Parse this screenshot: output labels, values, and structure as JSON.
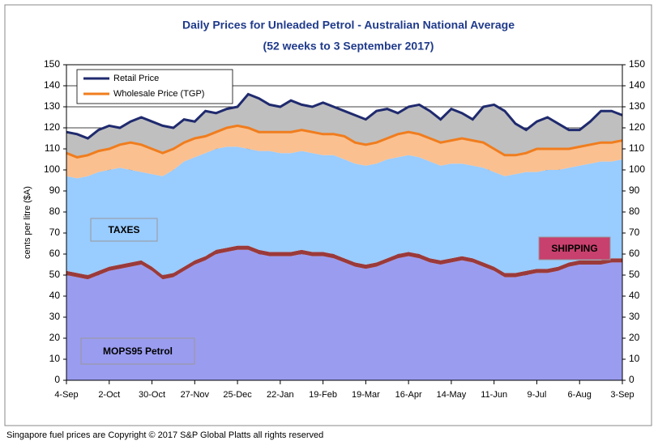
{
  "chart_data": {
    "type": "area",
    "title": "Daily Prices for Unleaded Petrol - Australian National Average",
    "subtitle": "(52 weeks to 3 September 2017)",
    "y_label": "cents per litre ($A)",
    "footer": "Singapore fuel prices are Copyright © 2017 S&P Global Platts all rights reserved",
    "categories": [
      "4-Sep",
      null,
      null,
      null,
      "2-Oct",
      null,
      null,
      null,
      "30-Oct",
      null,
      null,
      null,
      "27-Nov",
      null,
      null,
      null,
      "25-Dec",
      null,
      null,
      null,
      "22-Jan",
      null,
      null,
      null,
      "19-Feb",
      null,
      null,
      null,
      "19-Mar",
      null,
      null,
      null,
      "16-Apr",
      null,
      null,
      null,
      "14-May",
      null,
      null,
      null,
      "11-Jun",
      null,
      null,
      null,
      "9-Jul",
      null,
      null,
      null,
      "6-Aug",
      null,
      null,
      null,
      "3-Sep"
    ],
    "ylim": [
      0,
      150
    ],
    "yticks": [
      0,
      10,
      20,
      30,
      40,
      50,
      60,
      70,
      80,
      90,
      100,
      110,
      120,
      130,
      140,
      150
    ],
    "grid": true,
    "series": [
      {
        "name": "MOPS95 Petrol",
        "type": "area",
        "color": "#9a9cf0",
        "values": [
          50,
          49,
          48,
          50,
          52,
          53,
          54,
          55,
          52,
          48,
          49,
          52,
          55,
          57,
          60,
          61,
          62,
          62,
          60,
          59,
          59,
          59,
          60,
          59,
          59,
          58,
          56,
          54,
          53,
          54,
          56,
          58,
          59,
          58,
          56,
          55,
          56,
          57,
          56,
          54,
          52,
          49,
          49,
          50,
          51,
          51,
          52,
          54,
          55,
          55,
          55,
          56,
          56
        ]
      },
      {
        "name": "SHIPPING",
        "type": "area",
        "color": "#9b3a3a",
        "values": [
          2,
          2,
          2,
          2,
          2,
          2,
          2,
          2,
          2,
          2,
          2,
          2,
          2,
          2,
          2,
          2,
          2,
          2,
          2,
          2,
          2,
          2,
          2,
          2,
          2,
          2,
          2,
          2,
          2,
          2,
          2,
          2,
          2,
          2,
          2,
          2,
          2,
          2,
          2,
          2,
          2,
          2,
          2,
          2,
          2,
          2,
          2,
          2,
          2,
          2,
          2,
          2,
          2
        ]
      },
      {
        "name": "TAXES",
        "type": "area",
        "color": "#99ccff",
        "values": [
          45,
          45,
          47,
          47,
          46,
          46,
          44,
          42,
          44,
          47,
          49,
          50,
          49,
          49,
          48,
          48,
          47,
          46,
          47,
          48,
          47,
          47,
          47,
          47,
          46,
          47,
          47,
          47,
          47,
          47,
          47,
          46,
          46,
          46,
          46,
          45,
          45,
          44,
          44,
          45,
          45,
          46,
          47,
          47,
          46,
          47,
          46,
          45,
          45,
          46,
          47,
          46,
          47
        ]
      },
      {
        "name": "Wholesale Price (TGP)",
        "type": "line",
        "color": "#f07d1e",
        "fill": "#fac090",
        "values": [
          108,
          106,
          107,
          109,
          110,
          112,
          113,
          112,
          110,
          108,
          110,
          113,
          115,
          116,
          118,
          120,
          121,
          120,
          118,
          118,
          118,
          118,
          119,
          118,
          117,
          117,
          116,
          113,
          112,
          113,
          115,
          117,
          118,
          117,
          115,
          113,
          114,
          115,
          114,
          113,
          110,
          107,
          107,
          108,
          110,
          110,
          110,
          110,
          111,
          112,
          113,
          113,
          114
        ]
      },
      {
        "name": "Retail Price",
        "type": "line",
        "color": "#1f2a6e",
        "fill": "#bfbfbf",
        "values": [
          118,
          117,
          115,
          119,
          121,
          120,
          123,
          125,
          123,
          121,
          120,
          124,
          123,
          128,
          127,
          129,
          130,
          136,
          134,
          131,
          130,
          133,
          131,
          130,
          132,
          130,
          128,
          126,
          124,
          128,
          129,
          127,
          130,
          131,
          128,
          124,
          129,
          127,
          124,
          130,
          131,
          128,
          122,
          119,
          123,
          125,
          122,
          119,
          119,
          123,
          128,
          128,
          126
        ]
      }
    ]
  }
}
